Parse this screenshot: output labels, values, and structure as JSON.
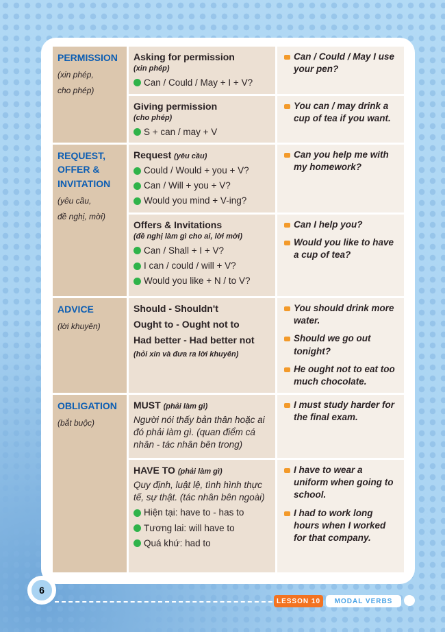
{
  "sections": [
    {
      "title": "PERMISSION",
      "subtitle": [
        "(xin phép,",
        "cho phép)"
      ],
      "subrows": [
        {
          "heading": "Asking for permission",
          "note": "(xin phép)",
          "formulas": [
            "Can / Could / May + I + V?"
          ],
          "examples": [
            "Can / Could / May I use your pen?"
          ]
        },
        {
          "heading": "Giving permission",
          "note": "(cho phép)",
          "formulas": [
            "S + can / may + V"
          ],
          "examples": [
            "You can / may drink a cup of tea if you want."
          ]
        }
      ]
    },
    {
      "title": "REQUEST, OFFER & INVITATION",
      "subtitle": [
        "(yêu cầu,",
        "đề nghị, mời)"
      ],
      "subrows": [
        {
          "heading": "Request",
          "heading_inline": "(yêu cầu)",
          "formulas": [
            "Could / Would + you + V?",
            "Can / Will + you + V?",
            "Would you mind + V-ing?"
          ],
          "examples": [
            "Can you help me with my homework?"
          ]
        },
        {
          "heading": "Offers & Invitations",
          "note": "(đề nghị làm gì cho ai, lời mời)",
          "formulas": [
            "Can / Shall + I + V?",
            "I can / could / will + V?",
            "Would you like + N / to V?"
          ],
          "examples": [
            "Can I help you?",
            "Would you like to have a cup of tea?"
          ]
        }
      ]
    },
    {
      "title": "ADVICE",
      "subtitle": [
        "(lời khuyên)"
      ],
      "subrows": [
        {
          "bold_lines": [
            "Should - Shouldn't",
            "Ought to - Ought not to",
            "Had better - Had better not"
          ],
          "note": "(hỏi xin và đưa ra lời khuyên)",
          "examples": [
            "You should drink more water.",
            "Should we go out tonight?",
            "He ought not to eat too much chocolate."
          ]
        }
      ]
    },
    {
      "title": "OBLIGATION",
      "subtitle": [
        "(bắt buộc)"
      ],
      "subrows": [
        {
          "heading": "MUST",
          "heading_inline": "(phải làm gì)",
          "description": "Người nói thấy bản thân hoặc ai đó phải làm gì. (quan điểm cá nhân - tác nhân bên trong)",
          "examples": [
            "I must study harder for the final exam."
          ]
        },
        {
          "heading": "HAVE TO",
          "heading_inline": "(phải làm gì)",
          "description": "Quy định, luật lệ, tình hình thực tế, sự thật. (tác nhân bên ngoài)",
          "formulas": [
            "Hiện tại: have to - has to",
            "Tương lai: will have to",
            "Quá khứ: had to"
          ],
          "examples": [
            "I have to wear a uniform when going to school.",
            "I had to work long hours when I worked for that company."
          ]
        }
      ]
    }
  ],
  "footer": {
    "page_number": "6",
    "lesson": "LESSON 10",
    "topic": "MODAL VERBS"
  },
  "colors": {
    "title_blue": "#0b5db3",
    "bullet_green": "#2fb34a",
    "lesson_orange": "#f37321"
  }
}
